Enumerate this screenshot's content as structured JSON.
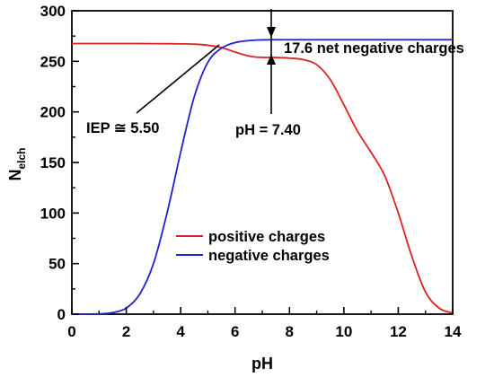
{
  "chart_data": {
    "type": "line",
    "xlabel": "pH",
    "ylabel_main": "N",
    "ylabel_sub": "elch",
    "xlim": [
      0,
      14
    ],
    "ylim": [
      0,
      300
    ],
    "x_ticks": [
      0,
      2,
      4,
      6,
      8,
      10,
      12,
      14
    ],
    "y_ticks": [
      0,
      50,
      100,
      150,
      200,
      250,
      300
    ],
    "grid": false,
    "legend_position": "center",
    "series": [
      {
        "name": "positive charges",
        "color": "#dd2222",
        "x": [
          0,
          1,
          2,
          3,
          4,
          4.5,
          5,
          5.5,
          6,
          6.5,
          7,
          7.4,
          8,
          8.5,
          9,
          9.5,
          10,
          10.5,
          11,
          11.5,
          12,
          12.5,
          13,
          13.5,
          14
        ],
        "y": [
          267.6,
          267.6,
          267.6,
          267.5,
          267.3,
          267.0,
          265.9,
          263.6,
          259.2,
          255.3,
          253.9,
          253.8,
          253.2,
          251.7,
          246.7,
          232.0,
          207.0,
          181.0,
          160.0,
          137.0,
          100.0,
          57.0,
          22.0,
          6.0,
          1.0
        ]
      },
      {
        "name": "negative charges",
        "color": "#2222cc",
        "x": [
          0,
          0.5,
          1,
          1.5,
          2,
          2.5,
          3,
          3.5,
          4,
          4.5,
          5,
          5.5,
          6,
          6.5,
          7,
          7.4,
          8,
          9,
          10,
          11,
          12,
          13,
          14
        ],
        "y": [
          0,
          0,
          0.3,
          1.5,
          6,
          20,
          50,
          100,
          160,
          215,
          249,
          263,
          268.5,
          270.5,
          271.2,
          271.4,
          271.4,
          271.4,
          271.4,
          271.4,
          271.4,
          271.4,
          271.4
        ]
      }
    ],
    "annotations": {
      "iep": "IEP ≅ 5.50",
      "ph": "pH = 7.40",
      "net": "17.6 net negative charges"
    }
  }
}
